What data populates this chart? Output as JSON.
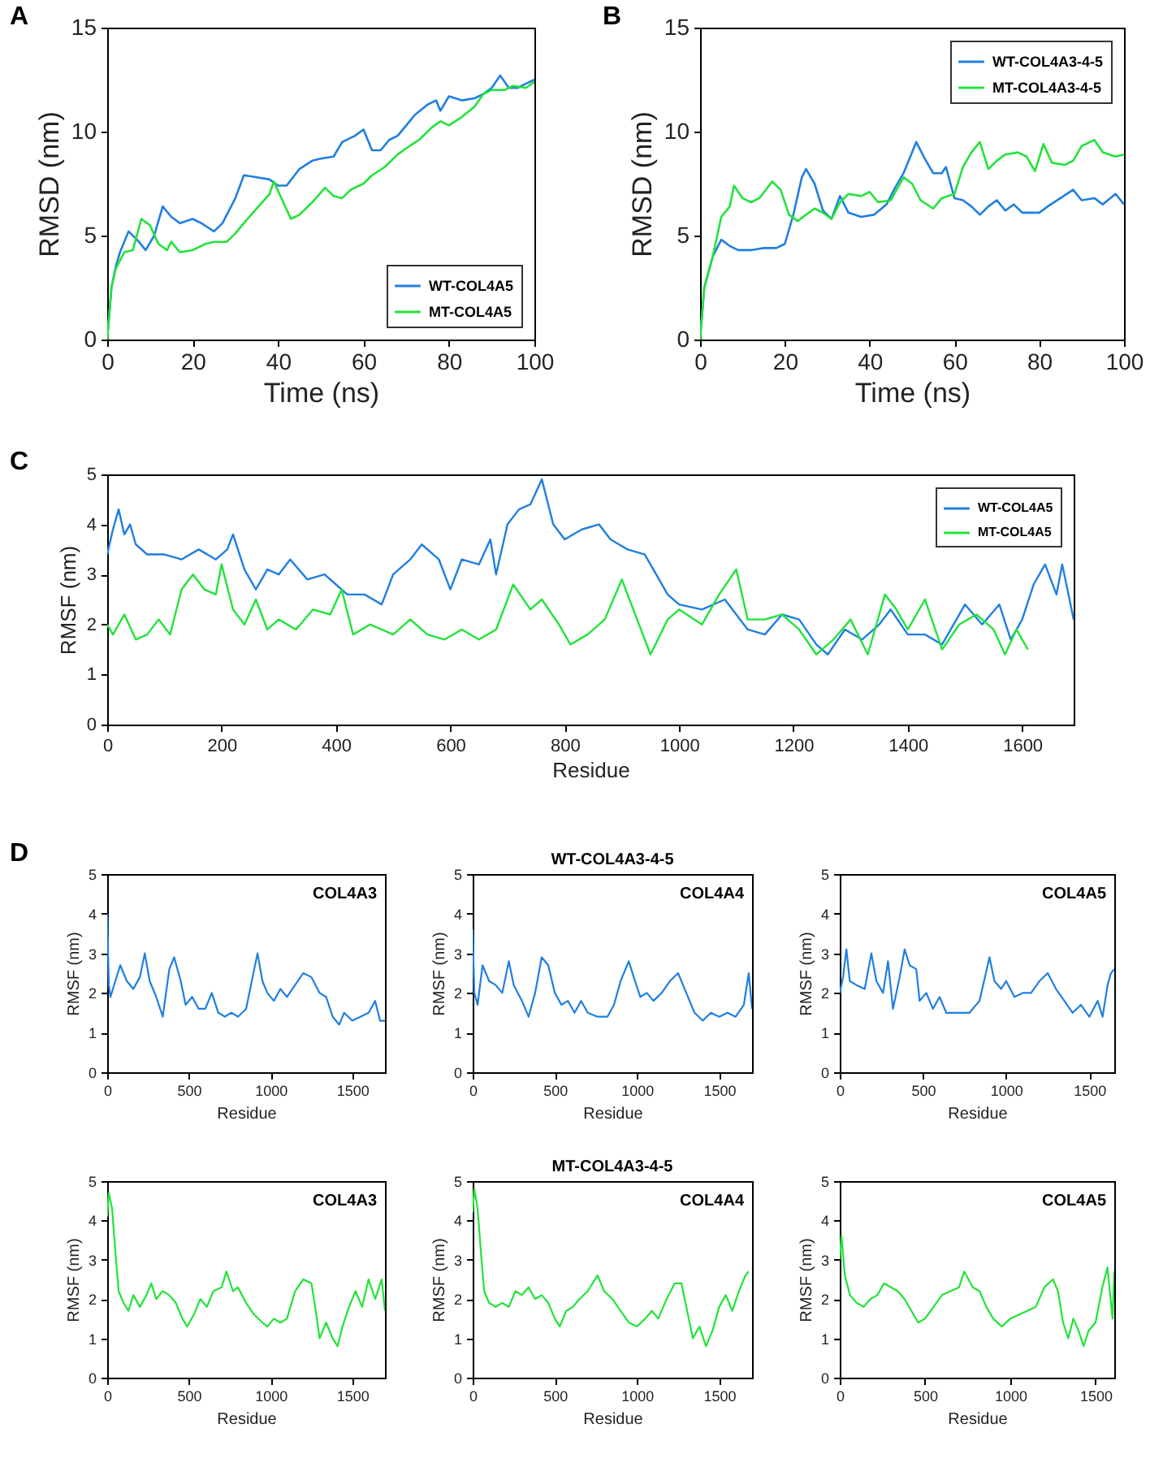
{
  "chart_data": [
    {
      "type": "line",
      "annotations": [
        "A"
      ],
      "xlabel": "Time (ns)",
      "ylabel": "RMSD (nm)",
      "xlim": [
        0,
        100
      ],
      "ylim": [
        0,
        15
      ],
      "xticks": [
        0,
        20,
        40,
        60,
        80,
        100
      ],
      "yticks": [
        0,
        5,
        10,
        15
      ],
      "legend": "bottom right",
      "series": [
        {
          "name": "WT-COL4A5",
          "color": "#1f7fe0",
          "x": [
            0,
            1,
            2,
            3,
            5,
            7,
            9,
            11,
            13,
            15,
            17,
            20,
            22,
            25,
            27,
            30,
            32,
            35,
            38,
            40,
            42,
            45,
            48,
            50,
            53,
            55,
            58,
            60,
            62,
            64,
            66,
            68,
            70,
            72,
            75,
            77,
            78,
            80,
            83,
            86,
            88,
            90,
            92,
            94,
            96,
            98,
            100
          ],
          "values": [
            0,
            2.5,
            3.5,
            4.2,
            5.2,
            4.8,
            4.3,
            5.0,
            6.4,
            5.9,
            5.6,
            5.8,
            5.6,
            5.2,
            5.6,
            6.8,
            7.9,
            7.8,
            7.7,
            7.4,
            7.4,
            8.2,
            8.6,
            8.7,
            8.8,
            9.5,
            9.8,
            10.1,
            9.1,
            9.1,
            9.6,
            9.8,
            10.3,
            10.8,
            11.3,
            11.5,
            11.0,
            11.7,
            11.5,
            11.6,
            11.8,
            12.1,
            12.7,
            12.1,
            12.1,
            12.3,
            12.5
          ]
        },
        {
          "name": "MT-COL4A5",
          "color": "#22e33a",
          "x": [
            0,
            1,
            2,
            4,
            6,
            8,
            10,
            12,
            14,
            15,
            17,
            20,
            23,
            25,
            28,
            30,
            32,
            35,
            38,
            39,
            41,
            43,
            45,
            48,
            51,
            53,
            55,
            57,
            60,
            62,
            65,
            68,
            70,
            73,
            76,
            78,
            80,
            83,
            86,
            88,
            90,
            93,
            95,
            98,
            100
          ],
          "values": [
            0,
            2.5,
            3.4,
            4.2,
            4.3,
            5.8,
            5.5,
            4.6,
            4.3,
            4.7,
            4.2,
            4.3,
            4.6,
            4.7,
            4.7,
            5.1,
            5.6,
            6.3,
            7.0,
            7.6,
            6.7,
            5.8,
            6.0,
            6.6,
            7.3,
            6.9,
            6.8,
            7.2,
            7.5,
            7.9,
            8.3,
            8.9,
            9.2,
            9.6,
            10.2,
            10.5,
            10.3,
            10.7,
            11.2,
            11.8,
            12.0,
            12.0,
            12.2,
            12.1,
            12.4
          ]
        }
      ]
    },
    {
      "type": "line",
      "annotations": [
        "B"
      ],
      "xlabel": "Time (ns)",
      "ylabel": "RMSD (nm)",
      "xlim": [
        0,
        100
      ],
      "ylim": [
        0,
        15
      ],
      "xticks": [
        0,
        20,
        40,
        60,
        80,
        100
      ],
      "yticks": [
        0,
        5,
        10,
        15
      ],
      "legend": "top right",
      "series": [
        {
          "name": "WT-COL4A3-4-5",
          "color": "#1f7fe0",
          "x": [
            0,
            1,
            3,
            5,
            7,
            9,
            12,
            15,
            18,
            20,
            22,
            24,
            25,
            27,
            29,
            31,
            33,
            35,
            38,
            41,
            44,
            46,
            48,
            51,
            53,
            55,
            57,
            58,
            60,
            62,
            64,
            66,
            68,
            70,
            72,
            74,
            76,
            80,
            82,
            85,
            88,
            90,
            93,
            95,
            98,
            100
          ],
          "values": [
            0,
            2.5,
            4.0,
            4.8,
            4.5,
            4.3,
            4.3,
            4.4,
            4.4,
            4.6,
            6.0,
            7.8,
            8.2,
            7.5,
            6.2,
            5.8,
            6.9,
            6.1,
            5.9,
            6.0,
            6.5,
            7.3,
            8.0,
            9.5,
            8.7,
            8.0,
            8.0,
            8.3,
            6.8,
            6.7,
            6.4,
            6.0,
            6.4,
            6.7,
            6.2,
            6.5,
            6.1,
            6.1,
            6.4,
            6.8,
            7.2,
            6.7,
            6.8,
            6.5,
            7.0,
            6.5
          ]
        },
        {
          "name": "MT-COL4A3-4-5",
          "color": "#22e33a",
          "x": [
            0,
            1,
            3,
            5,
            7,
            8,
            10,
            12,
            14,
            17,
            19,
            21,
            23,
            25,
            27,
            29,
            31,
            33,
            35,
            38,
            40,
            42,
            45,
            48,
            50,
            52,
            55,
            57,
            60,
            62,
            64,
            66,
            68,
            70,
            72,
            75,
            77,
            79,
            81,
            83,
            86,
            88,
            90,
            93,
            95,
            98,
            100
          ],
          "values": [
            0,
            2.5,
            4.0,
            5.9,
            6.4,
            7.4,
            6.8,
            6.6,
            6.8,
            7.6,
            7.2,
            6.0,
            5.7,
            6.0,
            6.3,
            6.1,
            5.8,
            6.6,
            7.0,
            6.9,
            7.1,
            6.6,
            6.7,
            7.8,
            7.5,
            6.7,
            6.3,
            6.8,
            7.0,
            8.3,
            9.0,
            9.5,
            8.2,
            8.6,
            8.9,
            9.0,
            8.8,
            8.1,
            9.4,
            8.5,
            8.4,
            8.6,
            9.3,
            9.6,
            9.0,
            8.8,
            8.9
          ]
        }
      ]
    },
    {
      "type": "line",
      "annotations": [
        "C"
      ],
      "xlabel": "Residue",
      "ylabel": "RMSF (nm)",
      "xlim": [
        0,
        1690
      ],
      "ylim": [
        0,
        5
      ],
      "xticks": [
        0,
        200,
        400,
        600,
        800,
        1000,
        1200,
        1400,
        1600
      ],
      "yticks": [
        0,
        1,
        2,
        3,
        4,
        5
      ],
      "legend": "top right",
      "series": [
        {
          "name": "WT-COL4A5",
          "color": "#1f7fe0",
          "x": [
            0,
            10,
            20,
            30,
            40,
            50,
            70,
            100,
            130,
            160,
            190,
            210,
            220,
            240,
            260,
            280,
            300,
            320,
            350,
            380,
            400,
            420,
            450,
            480,
            500,
            530,
            550,
            580,
            600,
            620,
            650,
            670,
            680,
            700,
            720,
            740,
            760,
            780,
            800,
            830,
            860,
            880,
            910,
            940,
            960,
            980,
            1000,
            1040,
            1080,
            1120,
            1150,
            1180,
            1210,
            1240,
            1260,
            1290,
            1320,
            1350,
            1370,
            1400,
            1430,
            1460,
            1500,
            1530,
            1560,
            1580,
            1600,
            1620,
            1640,
            1660,
            1670,
            1690
          ],
          "values": [
            3.4,
            3.9,
            4.3,
            3.8,
            4.0,
            3.6,
            3.4,
            3.4,
            3.3,
            3.5,
            3.3,
            3.5,
            3.8,
            3.1,
            2.7,
            3.1,
            3.0,
            3.3,
            2.9,
            3.0,
            2.8,
            2.6,
            2.6,
            2.4,
            3.0,
            3.3,
            3.6,
            3.3,
            2.7,
            3.3,
            3.2,
            3.7,
            3.0,
            4.0,
            4.3,
            4.4,
            4.9,
            4.0,
            3.7,
            3.9,
            4.0,
            3.7,
            3.5,
            3.4,
            3.0,
            2.6,
            2.4,
            2.3,
            2.5,
            1.9,
            1.8,
            2.2,
            2.1,
            1.6,
            1.4,
            1.9,
            1.7,
            2.0,
            2.3,
            1.8,
            1.8,
            1.6,
            2.4,
            2.0,
            2.4,
            1.7,
            2.1,
            2.8,
            3.2,
            2.6,
            3.2,
            2.1
          ]
        },
        {
          "name": "MT-COL4A5",
          "color": "#22e33a",
          "x": [
            0,
            10,
            30,
            50,
            70,
            90,
            110,
            130,
            150,
            170,
            190,
            200,
            220,
            240,
            260,
            280,
            300,
            330,
            360,
            390,
            410,
            430,
            460,
            500,
            530,
            560,
            590,
            620,
            650,
            680,
            710,
            740,
            760,
            790,
            810,
            840,
            870,
            900,
            920,
            950,
            980,
            1000,
            1040,
            1070,
            1100,
            1120,
            1150,
            1180,
            1210,
            1240,
            1270,
            1300,
            1330,
            1360,
            1380,
            1400,
            1430,
            1460,
            1490,
            1520,
            1550,
            1570,
            1590,
            1610
          ],
          "values": [
            2.0,
            1.8,
            2.2,
            1.7,
            1.8,
            2.1,
            1.8,
            2.7,
            3.0,
            2.7,
            2.6,
            3.2,
            2.3,
            2.0,
            2.5,
            1.9,
            2.1,
            1.9,
            2.3,
            2.2,
            2.7,
            1.8,
            2.0,
            1.8,
            2.1,
            1.8,
            1.7,
            1.9,
            1.7,
            1.9,
            2.8,
            2.3,
            2.5,
            2.0,
            1.6,
            1.8,
            2.1,
            2.9,
            2.3,
            1.4,
            2.1,
            2.3,
            2.0,
            2.6,
            3.1,
            2.1,
            2.1,
            2.2,
            1.9,
            1.4,
            1.7,
            2.1,
            1.4,
            2.6,
            2.3,
            1.9,
            2.5,
            1.5,
            2.0,
            2.2,
            1.9,
            1.4,
            1.9,
            1.5
          ]
        }
      ]
    },
    {
      "type": "line",
      "annotations": [
        "D"
      ],
      "title": "COL4A3",
      "xlabel": "Residue",
      "ylabel": "RMSF (nm)",
      "xlim": [
        0,
        1700
      ],
      "ylim": [
        0,
        5
      ],
      "xticks": [
        0,
        500,
        1000,
        1500
      ],
      "yticks": [
        0,
        1,
        2,
        3,
        4,
        5
      ],
      "series": [
        {
          "color": "#1f7fe0",
          "x": [
            0,
            10,
            20,
            50,
            80,
            120,
            160,
            200,
            230,
            260,
            300,
            340,
            380,
            410,
            450,
            480,
            520,
            560,
            600,
            640,
            680,
            720,
            760,
            800,
            850,
            900,
            920,
            950,
            980,
            1020,
            1060,
            1100,
            1150,
            1200,
            1250,
            1300,
            1340,
            1380,
            1420,
            1450,
            1500,
            1550,
            1600,
            1640,
            1670,
            1700
          ],
          "values": [
            4.0,
            2.2,
            1.9,
            2.3,
            2.7,
            2.3,
            2.1,
            2.4,
            3.0,
            2.3,
            1.9,
            1.4,
            2.6,
            2.9,
            2.3,
            1.7,
            1.9,
            1.6,
            1.6,
            2.0,
            1.5,
            1.4,
            1.5,
            1.4,
            1.6,
            2.6,
            3.0,
            2.3,
            2.0,
            1.8,
            2.1,
            1.9,
            2.2,
            2.5,
            2.4,
            2.0,
            1.9,
            1.4,
            1.2,
            1.5,
            1.3,
            1.4,
            1.5,
            1.8,
            1.3,
            1.3
          ]
        }
      ]
    },
    {
      "type": "line",
      "subtitle": "WT-COL4A3-4-5",
      "title": "COL4A4",
      "xlabel": "Residue",
      "ylabel": "RMSF (nm)",
      "xlim": [
        0,
        1700
      ],
      "ylim": [
        0,
        5
      ],
      "xticks": [
        0,
        500,
        1000,
        1500
      ],
      "yticks": [
        0,
        1,
        2,
        3,
        4,
        5
      ],
      "series": [
        {
          "color": "#1f7fe0",
          "x": [
            0,
            10,
            30,
            60,
            100,
            140,
            180,
            220,
            250,
            300,
            340,
            380,
            420,
            460,
            500,
            540,
            580,
            620,
            660,
            700,
            760,
            820,
            860,
            900,
            950,
            980,
            1020,
            1060,
            1100,
            1150,
            1200,
            1250,
            1300,
            1350,
            1400,
            1450,
            1500,
            1550,
            1600,
            1650,
            1680,
            1700
          ],
          "values": [
            3.6,
            2.0,
            1.7,
            2.7,
            2.3,
            2.2,
            2.0,
            2.8,
            2.2,
            1.8,
            1.4,
            2.0,
            2.9,
            2.7,
            2.0,
            1.7,
            1.8,
            1.5,
            1.8,
            1.5,
            1.4,
            1.4,
            1.7,
            2.3,
            2.8,
            2.4,
            1.9,
            2.0,
            1.8,
            2.0,
            2.3,
            2.5,
            2.0,
            1.5,
            1.3,
            1.5,
            1.4,
            1.5,
            1.4,
            1.7,
            2.5,
            1.6
          ]
        }
      ]
    },
    {
      "type": "line",
      "title": "COL4A5",
      "xlabel": "Residue",
      "ylabel": "RMSF (nm)",
      "xlim": [
        0,
        1650
      ],
      "ylim": [
        0,
        5
      ],
      "xticks": [
        0,
        500,
        1000,
        1500
      ],
      "yticks": [
        0,
        1,
        2,
        3,
        4,
        5
      ],
      "series": [
        {
          "color": "#1f7fe0",
          "x": [
            0,
            20,
            40,
            60,
            100,
            150,
            190,
            220,
            260,
            290,
            320,
            360,
            390,
            420,
            460,
            480,
            520,
            560,
            600,
            640,
            680,
            720,
            780,
            840,
            900,
            930,
            970,
            1000,
            1050,
            1100,
            1150,
            1200,
            1250,
            1300,
            1350,
            1400,
            1450,
            1500,
            1550,
            1580,
            1610,
            1630,
            1650
          ],
          "values": [
            2.0,
            2.4,
            3.1,
            2.3,
            2.2,
            2.1,
            3.0,
            2.3,
            2.0,
            2.8,
            1.6,
            2.4,
            3.1,
            2.7,
            2.6,
            1.8,
            2.0,
            1.6,
            1.9,
            1.5,
            1.5,
            1.5,
            1.5,
            1.8,
            2.9,
            2.3,
            2.1,
            2.3,
            1.9,
            2.0,
            2.0,
            2.3,
            2.5,
            2.1,
            1.8,
            1.5,
            1.7,
            1.4,
            1.8,
            1.4,
            2.2,
            2.5,
            2.6
          ]
        }
      ]
    },
    {
      "type": "line",
      "title": "COL4A3",
      "xlabel": "Residue",
      "ylabel": "RMSF (nm)",
      "xlim": [
        0,
        1700
      ],
      "ylim": [
        0,
        5
      ],
      "xticks": [
        0,
        500,
        1000,
        1500
      ],
      "yticks": [
        0,
        1,
        2,
        3,
        4,
        5
      ],
      "series": [
        {
          "color": "#22e33a",
          "x": [
            0,
            10,
            30,
            50,
            70,
            100,
            130,
            160,
            200,
            240,
            270,
            300,
            340,
            380,
            420,
            460,
            490,
            530,
            570,
            610,
            650,
            700,
            730,
            770,
            800,
            850,
            900,
            950,
            980,
            1020,
            1060,
            1100,
            1150,
            1200,
            1250,
            1280,
            1300,
            1340,
            1380,
            1410,
            1440,
            1480,
            1520,
            1560,
            1600,
            1640,
            1680,
            1700
          ],
          "values": [
            4.1,
            4.7,
            4.3,
            3.2,
            2.2,
            1.9,
            1.7,
            2.1,
            1.8,
            2.1,
            2.4,
            2.0,
            2.2,
            2.1,
            1.9,
            1.5,
            1.3,
            1.6,
            2.0,
            1.8,
            2.2,
            2.3,
            2.7,
            2.2,
            2.3,
            1.9,
            1.6,
            1.4,
            1.3,
            1.5,
            1.4,
            1.5,
            2.2,
            2.5,
            2.4,
            1.6,
            1.0,
            1.4,
            1.0,
            0.8,
            1.3,
            1.8,
            2.2,
            1.8,
            2.5,
            2.0,
            2.5,
            1.7
          ]
        }
      ]
    },
    {
      "type": "line",
      "subtitle": "MT-COL4A3-4-5",
      "title": "COL4A4",
      "xlabel": "Residue",
      "ylabel": "RMSF (nm)",
      "xlim": [
        0,
        1700
      ],
      "ylim": [
        0,
        5
      ],
      "xticks": [
        0,
        500,
        1000,
        1500
      ],
      "yticks": [
        0,
        1,
        2,
        3,
        4,
        5
      ],
      "series": [
        {
          "color": "#22e33a",
          "x": [
            0,
            10,
            30,
            50,
            70,
            100,
            140,
            180,
            220,
            260,
            300,
            340,
            380,
            420,
            460,
            500,
            530,
            570,
            610,
            650,
            700,
            760,
            800,
            850,
            900,
            950,
            1000,
            1050,
            1090,
            1130,
            1180,
            1230,
            1270,
            1310,
            1340,
            1380,
            1420,
            1460,
            1500,
            1540,
            1580,
            1620,
            1660,
            1680
          ],
          "values": [
            4.2,
            4.8,
            4.3,
            3.2,
            2.2,
            1.9,
            1.8,
            1.9,
            1.8,
            2.2,
            2.1,
            2.3,
            2.0,
            2.1,
            1.9,
            1.5,
            1.3,
            1.7,
            1.8,
            2.0,
            2.2,
            2.6,
            2.2,
            2.0,
            1.7,
            1.4,
            1.3,
            1.5,
            1.7,
            1.5,
            2.0,
            2.4,
            2.4,
            1.6,
            1.0,
            1.3,
            0.8,
            1.2,
            1.8,
            2.1,
            1.7,
            2.2,
            2.6,
            2.7
          ]
        }
      ]
    },
    {
      "type": "line",
      "title": "COL4A5",
      "xlabel": "Residue",
      "ylabel": "RMSF (nm)",
      "xlim": [
        0,
        1610
      ],
      "ylim": [
        0,
        5
      ],
      "xticks": [
        0,
        500,
        1000,
        1500
      ],
      "yticks": [
        0,
        1,
        2,
        3,
        4,
        5
      ],
      "series": [
        {
          "color": "#22e33a",
          "x": [
            0,
            10,
            30,
            60,
            100,
            140,
            180,
            220,
            260,
            300,
            340,
            380,
            420,
            460,
            500,
            550,
            600,
            650,
            700,
            730,
            780,
            820,
            860,
            900,
            950,
            1000,
            1050,
            1100,
            1150,
            1200,
            1250,
            1280,
            1310,
            1340,
            1370,
            1400,
            1430,
            1460,
            1500,
            1540,
            1570,
            1600,
            1610
          ],
          "values": [
            3.0,
            3.6,
            2.6,
            2.1,
            1.9,
            1.8,
            2.0,
            2.1,
            2.4,
            2.3,
            2.2,
            2.0,
            1.7,
            1.4,
            1.5,
            1.8,
            2.1,
            2.2,
            2.3,
            2.7,
            2.3,
            2.2,
            1.8,
            1.5,
            1.3,
            1.5,
            1.6,
            1.7,
            1.8,
            2.3,
            2.5,
            2.2,
            1.4,
            1.0,
            1.5,
            1.2,
            0.8,
            1.2,
            1.4,
            2.3,
            2.8,
            1.5,
            2.7
          ]
        }
      ]
    }
  ]
}
